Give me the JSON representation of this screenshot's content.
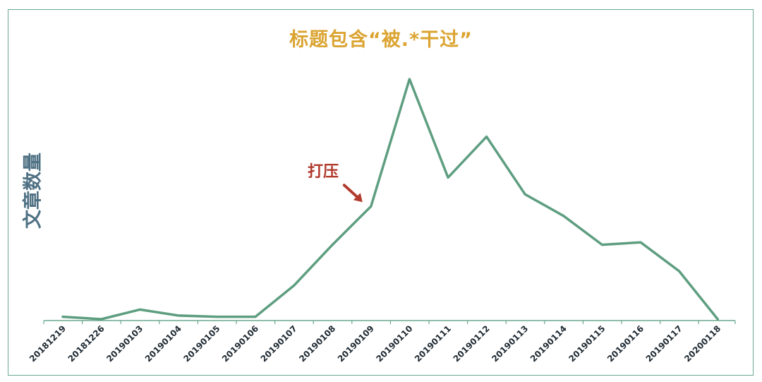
{
  "chart_data": {
    "type": "line",
    "title": "标题包含“被.*干过”",
    "xlabel": "",
    "ylabel": "文章数量",
    "categories": [
      "20181219",
      "20181226",
      "20190103",
      "20190104",
      "20190105",
      "20190106",
      "20190107",
      "20190108",
      "20190109",
      "20190110",
      "20190111",
      "20190112",
      "20190113",
      "20190114",
      "20190115",
      "20190116",
      "20190117",
      "20200118"
    ],
    "series": [
      {
        "values": [
          1,
          0,
          4,
          1.5,
          1,
          1,
          14,
          31,
          47,
          100,
          59,
          76,
          52,
          43,
          31,
          32,
          20,
          0
        ]
      }
    ],
    "ylim": [
      0,
      100
    ],
    "grid": false,
    "annotations": [
      {
        "text": "打压",
        "category": "20190109",
        "arrow": true
      }
    ],
    "colors": {
      "line": "#5e9e80",
      "axis": "#6aa88f",
      "title": "#dba431",
      "ylabel": "#4f7184",
      "annotation": "#b13b2e"
    }
  }
}
